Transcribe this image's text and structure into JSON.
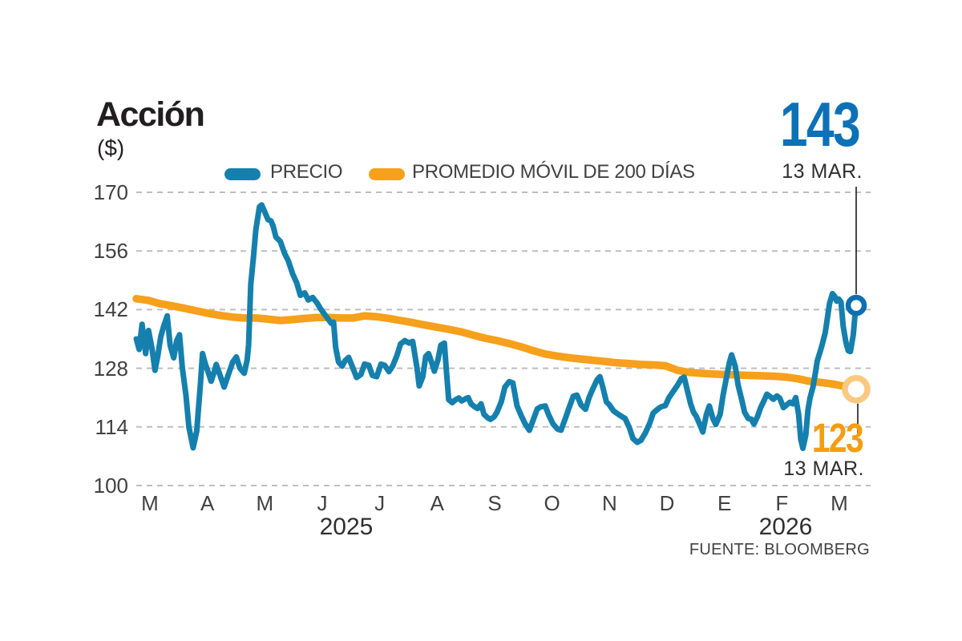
{
  "header": {
    "title": "Acción",
    "unit": "($)"
  },
  "source": {
    "label": "FUENTE: BLOOMBERG"
  },
  "colors": {
    "price_line": "#1580AD",
    "price_number": "#0C71B7",
    "price_marker_ring": "#0D6FB0",
    "ma_line": "#F6A01B",
    "ma_number": "#F49D13",
    "ma_marker_ring": "#F9C981",
    "grid": "#BDBEBF",
    "callout_line": "#1A1A1A",
    "title_text": "#221E1F",
    "label_text": "#414042"
  },
  "chart_data": {
    "type": "line",
    "title": "Acción",
    "ylabel": "($)",
    "legend_position": "top",
    "grid": "horizontal-dashed",
    "y_axis": {
      "min": 100,
      "max": 170,
      "ticks": [
        170,
        156,
        142,
        128,
        114,
        100
      ]
    },
    "x_axis": {
      "months": [
        "M",
        "A",
        "M",
        "J",
        "J",
        "A",
        "S",
        "O",
        "N",
        "D",
        "E",
        "F",
        "M"
      ],
      "years": [
        "2025",
        "2026"
      ]
    },
    "series": [
      {
        "name": "PRECIO",
        "color": "#1580AD",
        "end": {
          "value": "143",
          "date": "13 MAR."
        },
        "points": [
          [
            0.0,
            135
          ],
          [
            0.004,
            132.5
          ],
          [
            0.008,
            138.5
          ],
          [
            0.013,
            131.5
          ],
          [
            0.017,
            137
          ],
          [
            0.022,
            132.5
          ],
          [
            0.026,
            127.5
          ],
          [
            0.03,
            131
          ],
          [
            0.034,
            135.5
          ],
          [
            0.038,
            138
          ],
          [
            0.043,
            140.5
          ],
          [
            0.047,
            133.5
          ],
          [
            0.052,
            130.5
          ],
          [
            0.056,
            134.5
          ],
          [
            0.06,
            136
          ],
          [
            0.064,
            128
          ],
          [
            0.069,
            121.5
          ],
          [
            0.073,
            114
          ],
          [
            0.079,
            109
          ],
          [
            0.084,
            113
          ],
          [
            0.089,
            124
          ],
          [
            0.092,
            131.5
          ],
          [
            0.096,
            129
          ],
          [
            0.1,
            127
          ],
          [
            0.104,
            124.9
          ],
          [
            0.108,
            127
          ],
          [
            0.111,
            128.9
          ],
          [
            0.117,
            126
          ],
          [
            0.122,
            123.5
          ],
          [
            0.128,
            126.5
          ],
          [
            0.134,
            129.5
          ],
          [
            0.139,
            130.7
          ],
          [
            0.144,
            128
          ],
          [
            0.15,
            126.8
          ],
          [
            0.154,
            130
          ],
          [
            0.156,
            133.5
          ],
          [
            0.159,
            148
          ],
          [
            0.163,
            155
          ],
          [
            0.166,
            161
          ],
          [
            0.171,
            166.5
          ],
          [
            0.174,
            167
          ],
          [
            0.178,
            165.5
          ],
          [
            0.183,
            163.5
          ],
          [
            0.187,
            163.2
          ],
          [
            0.19,
            162
          ],
          [
            0.194,
            159.3
          ],
          [
            0.2,
            158.3
          ],
          [
            0.206,
            155.4
          ],
          [
            0.211,
            153.7
          ],
          [
            0.217,
            150.6
          ],
          [
            0.223,
            148.3
          ],
          [
            0.228,
            145.4
          ],
          [
            0.234,
            146
          ],
          [
            0.239,
            144.3
          ],
          [
            0.245,
            144.9
          ],
          [
            0.251,
            143.6
          ],
          [
            0.256,
            142.2
          ],
          [
            0.264,
            140.3
          ],
          [
            0.271,
            138.7
          ],
          [
            0.274,
            139
          ],
          [
            0.277,
            133
          ],
          [
            0.281,
            129.5
          ],
          [
            0.286,
            128.5
          ],
          [
            0.29,
            129.8
          ],
          [
            0.295,
            130.6
          ],
          [
            0.301,
            128
          ],
          [
            0.306,
            125.8
          ],
          [
            0.312,
            126.5
          ],
          [
            0.317,
            129
          ],
          [
            0.323,
            128.7
          ],
          [
            0.328,
            126.3
          ],
          [
            0.334,
            126
          ],
          [
            0.34,
            129
          ],
          [
            0.345,
            128.7
          ],
          [
            0.351,
            127.2
          ],
          [
            0.356,
            128.5
          ],
          [
            0.362,
            131
          ],
          [
            0.367,
            133.8
          ],
          [
            0.373,
            134.6
          ],
          [
            0.379,
            134
          ],
          [
            0.384,
            134.4
          ],
          [
            0.39,
            128
          ],
          [
            0.393,
            123.8
          ],
          [
            0.398,
            126
          ],
          [
            0.402,
            130.8
          ],
          [
            0.406,
            131.5
          ],
          [
            0.411,
            129
          ],
          [
            0.414,
            127.3
          ],
          [
            0.419,
            130
          ],
          [
            0.423,
            133.5
          ],
          [
            0.428,
            134
          ],
          [
            0.431,
            127
          ],
          [
            0.434,
            120.5
          ],
          [
            0.439,
            119.8
          ],
          [
            0.443,
            120.4
          ],
          [
            0.448,
            120.9
          ],
          [
            0.452,
            120.2
          ],
          [
            0.457,
            120.7
          ],
          [
            0.461,
            121
          ],
          [
            0.465,
            119.5
          ],
          [
            0.47,
            118.8
          ],
          [
            0.474,
            118.4
          ],
          [
            0.479,
            119.5
          ],
          [
            0.483,
            117
          ],
          [
            0.488,
            116.2
          ],
          [
            0.492,
            115.8
          ],
          [
            0.497,
            116.4
          ],
          [
            0.501,
            117.5
          ],
          [
            0.507,
            120
          ],
          [
            0.512,
            123.5
          ],
          [
            0.518,
            124.8
          ],
          [
            0.523,
            124.5
          ],
          [
            0.529,
            119
          ],
          [
            0.535,
            116.6
          ],
          [
            0.54,
            114.8
          ],
          [
            0.546,
            113.2
          ],
          [
            0.551,
            115.5
          ],
          [
            0.557,
            118.3
          ],
          [
            0.562,
            118.8
          ],
          [
            0.568,
            119
          ],
          [
            0.573,
            116.8
          ],
          [
            0.579,
            114.7
          ],
          [
            0.585,
            113.5
          ],
          [
            0.59,
            113.2
          ],
          [
            0.596,
            116
          ],
          [
            0.601,
            118.5
          ],
          [
            0.607,
            121.3
          ],
          [
            0.612,
            121.6
          ],
          [
            0.618,
            119.2
          ],
          [
            0.624,
            118.2
          ],
          [
            0.629,
            121
          ],
          [
            0.635,
            123.4
          ],
          [
            0.64,
            125.2
          ],
          [
            0.644,
            126
          ],
          [
            0.648,
            123.5
          ],
          [
            0.653,
            120
          ],
          [
            0.657,
            119.3
          ],
          [
            0.663,
            117.8
          ],
          [
            0.668,
            117.2
          ],
          [
            0.674,
            116.5
          ],
          [
            0.679,
            116
          ],
          [
            0.685,
            113.8
          ],
          [
            0.69,
            111.2
          ],
          [
            0.696,
            110.3
          ],
          [
            0.701,
            110.8
          ],
          [
            0.707,
            112.5
          ],
          [
            0.713,
            114.8
          ],
          [
            0.718,
            117.3
          ],
          [
            0.724,
            118.2
          ],
          [
            0.729,
            118.8
          ],
          [
            0.735,
            119.1
          ],
          [
            0.74,
            121
          ],
          [
            0.746,
            122.5
          ],
          [
            0.752,
            124
          ],
          [
            0.757,
            125.5
          ],
          [
            0.761,
            125.9
          ],
          [
            0.765,
            123
          ],
          [
            0.77,
            119.5
          ],
          [
            0.774,
            117.5
          ],
          [
            0.778,
            116.5
          ],
          [
            0.783,
            114.5
          ],
          [
            0.787,
            112.8
          ],
          [
            0.792,
            117
          ],
          [
            0.796,
            119
          ],
          [
            0.801,
            116
          ],
          [
            0.805,
            114.6
          ],
          [
            0.811,
            117
          ],
          [
            0.815,
            121.5
          ],
          [
            0.82,
            126
          ],
          [
            0.824,
            129.5
          ],
          [
            0.827,
            131.2
          ],
          [
            0.832,
            128.5
          ],
          [
            0.836,
            124
          ],
          [
            0.841,
            120.5
          ],
          [
            0.845,
            117.5
          ],
          [
            0.85,
            116
          ],
          [
            0.854,
            115.9
          ],
          [
            0.858,
            114.7
          ],
          [
            0.863,
            116.5
          ],
          [
            0.867,
            118.5
          ],
          [
            0.872,
            120.3
          ],
          [
            0.876,
            121.8
          ],
          [
            0.881,
            121.2
          ],
          [
            0.885,
            120.6
          ],
          [
            0.89,
            121.4
          ],
          [
            0.894,
            120.8
          ],
          [
            0.899,
            118.6
          ],
          [
            0.903,
            119.2
          ],
          [
            0.908,
            119.9
          ],
          [
            0.912,
            119.5
          ],
          [
            0.916,
            121
          ],
          [
            0.92,
            117
          ],
          [
            0.923,
            111
          ],
          [
            0.926,
            108.9
          ],
          [
            0.93,
            112
          ],
          [
            0.933,
            118
          ],
          [
            0.936,
            121
          ],
          [
            0.94,
            123.5
          ],
          [
            0.943,
            126.5
          ],
          [
            0.946,
            129.8
          ],
          [
            0.95,
            132
          ],
          [
            0.953,
            133.8
          ],
          [
            0.957,
            136.5
          ],
          [
            0.96,
            140
          ],
          [
            0.963,
            143.5
          ],
          [
            0.967,
            145.8
          ],
          [
            0.97,
            145.2
          ],
          [
            0.973,
            144
          ],
          [
            0.976,
            144.5
          ],
          [
            0.979,
            143.8
          ],
          [
            0.982,
            138
          ],
          [
            0.986,
            134
          ],
          [
            0.989,
            132.2
          ],
          [
            0.992,
            132
          ],
          [
            0.996,
            136
          ],
          [
            0.998,
            140
          ],
          [
            1.0,
            143
          ]
        ]
      },
      {
        "name": "PROMEDIO MÓVIL DE 200 DÍAS",
        "color": "#F6A01B",
        "end": {
          "value": "123",
          "date": "13 MAR."
        },
        "points": [
          [
            0.0,
            144.6
          ],
          [
            0.017,
            144.2
          ],
          [
            0.033,
            143.4
          ],
          [
            0.05,
            142.9
          ],
          [
            0.067,
            142.3
          ],
          [
            0.084,
            141.7
          ],
          [
            0.1,
            141.1
          ],
          [
            0.117,
            140.6
          ],
          [
            0.134,
            140.2
          ],
          [
            0.15,
            140.0
          ],
          [
            0.167,
            140.0
          ],
          [
            0.184,
            139.7
          ],
          [
            0.2,
            139.4
          ],
          [
            0.217,
            139.6
          ],
          [
            0.234,
            139.9
          ],
          [
            0.251,
            140.1
          ],
          [
            0.267,
            140.1
          ],
          [
            0.284,
            140.0
          ],
          [
            0.301,
            140.0
          ],
          [
            0.317,
            140.5
          ],
          [
            0.334,
            140.3
          ],
          [
            0.351,
            139.9
          ],
          [
            0.367,
            139.4
          ],
          [
            0.384,
            138.9
          ],
          [
            0.401,
            138.3
          ],
          [
            0.418,
            137.8
          ],
          [
            0.434,
            137.3
          ],
          [
            0.451,
            136.7
          ],
          [
            0.468,
            135.9
          ],
          [
            0.484,
            135.2
          ],
          [
            0.501,
            134.6
          ],
          [
            0.518,
            133.9
          ],
          [
            0.535,
            133.1
          ],
          [
            0.551,
            132.2
          ],
          [
            0.568,
            131.4
          ],
          [
            0.585,
            130.9
          ],
          [
            0.601,
            130.5
          ],
          [
            0.618,
            130.2
          ],
          [
            0.635,
            129.9
          ],
          [
            0.651,
            129.6
          ],
          [
            0.668,
            129.3
          ],
          [
            0.685,
            129.1
          ],
          [
            0.701,
            128.9
          ],
          [
            0.718,
            128.8
          ],
          [
            0.735,
            128.6
          ],
          [
            0.752,
            127.5
          ],
          [
            0.768,
            127.0
          ],
          [
            0.785,
            126.8
          ],
          [
            0.802,
            126.6
          ],
          [
            0.818,
            126.5
          ],
          [
            0.835,
            126.4
          ],
          [
            0.852,
            126.3
          ],
          [
            0.869,
            126.2
          ],
          [
            0.885,
            126.1
          ],
          [
            0.902,
            125.9
          ],
          [
            0.919,
            125.5
          ],
          [
            0.935,
            124.9
          ],
          [
            0.952,
            124.6
          ],
          [
            0.969,
            124.2
          ],
          [
            0.986,
            123.6
          ],
          [
            1.0,
            123
          ]
        ]
      }
    ]
  }
}
